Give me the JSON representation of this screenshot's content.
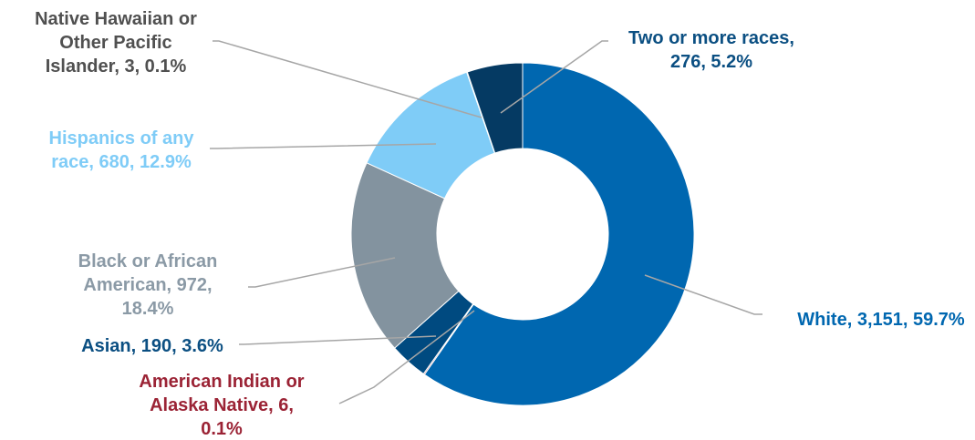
{
  "chart_data": {
    "type": "pie",
    "style": "donut",
    "title": "",
    "slices": [
      {
        "name": "White",
        "value": 3151,
        "percent": "59.7%",
        "color": "#0067B0",
        "label_color": "#0067B0",
        "label_lines": [
          "White, 3,151, 59.7%"
        ]
      },
      {
        "name": "American Indian or Alaska Native",
        "value": 6,
        "percent": "0.1%",
        "color": "#9B2335",
        "label_color": "#9B2335",
        "label_lines": [
          "American Indian or",
          "Alaska Native, 6,",
          "0.1%"
        ]
      },
      {
        "name": "Asian",
        "value": 190,
        "percent": "3.6%",
        "color": "#004A80",
        "label_color": "#0B4F82",
        "label_lines": [
          "Asian, 190, 3.6%"
        ]
      },
      {
        "name": "Black or African American",
        "value": 972,
        "percent": "18.4%",
        "color": "#83939F",
        "label_color": "#8B9AA6",
        "label_lines": [
          "Black or African",
          "American, 972,",
          "18.4%"
        ]
      },
      {
        "name": "Hispanics of any race",
        "value": 680,
        "percent": "12.9%",
        "color": "#7FCCF7",
        "label_color": "#7FCCF7",
        "label_lines": [
          "Hispanics of any",
          "race, 680, 12.9%"
        ]
      },
      {
        "name": "Native Hawaiian or Other Pacific Islander",
        "value": 3,
        "percent": "0.1%",
        "color": "#5A6570",
        "label_color": "#505050",
        "label_lines": [
          "Native Hawaiian or",
          "Other Pacific",
          "Islander, 3, 0.1%"
        ]
      },
      {
        "name": "Two or more races",
        "value": 276,
        "percent": "5.2%",
        "color": "#053A63",
        "label_color": "#0B4F82",
        "label_lines": [
          "Two or more races,",
          "276, 5.2%"
        ]
      }
    ],
    "leader_line_color": "#A6A6A6"
  }
}
